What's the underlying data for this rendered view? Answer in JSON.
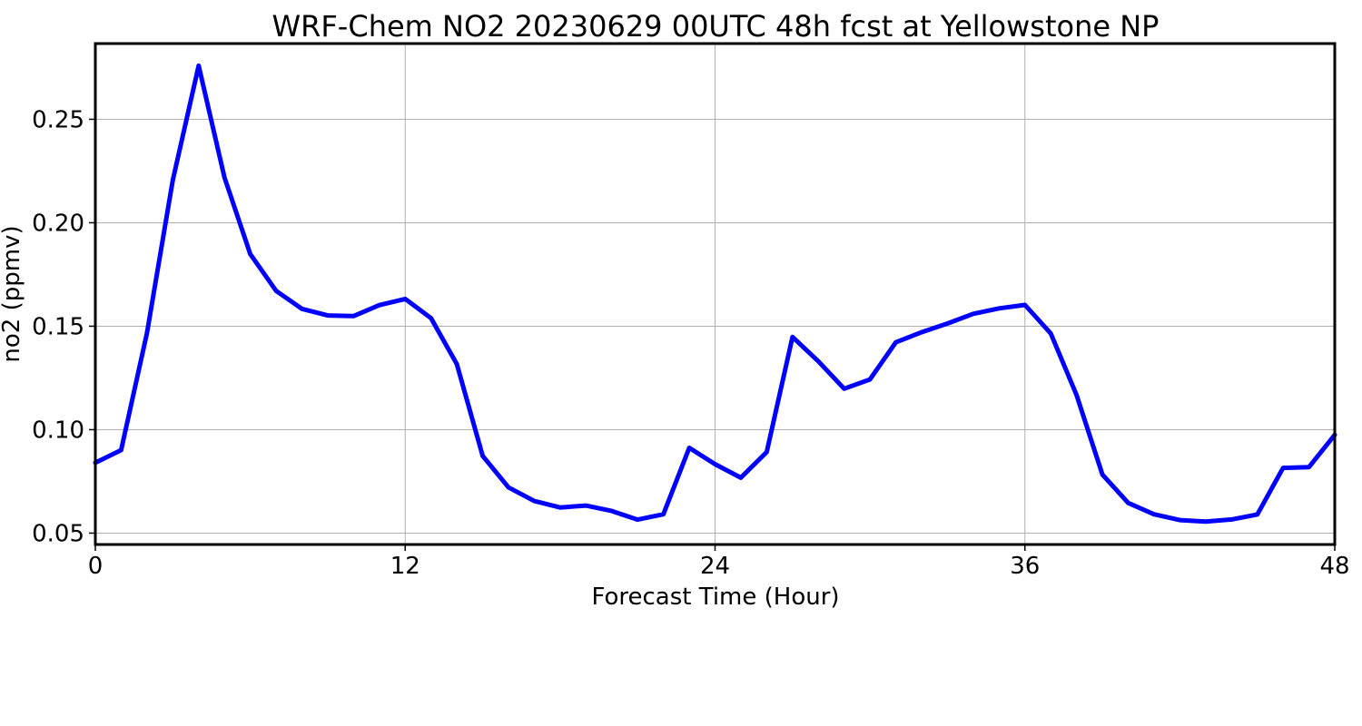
{
  "chart_data": {
    "type": "line",
    "title": "WRF-Chem NO2  20230629 00UTC 48h fcst at Yellowstone NP",
    "xlabel": "Forecast Time (Hour)",
    "ylabel": "no2  (ppmv)",
    "xlim": [
      0,
      48
    ],
    "ylim": [
      0.0445,
      0.2866
    ],
    "xticks": [
      0,
      12,
      24,
      36,
      48
    ],
    "xtick_labels": [
      "0",
      "12",
      "24",
      "36",
      "48"
    ],
    "yticks": [
      0.05,
      0.1,
      0.15,
      0.2,
      0.25
    ],
    "ytick_labels": [
      "0.05",
      "0.10",
      "0.15",
      "0.20",
      "0.25"
    ],
    "grid": true,
    "line_color": "#0000ff",
    "series": [
      {
        "x": [
          0,
          1,
          2,
          3,
          4,
          5,
          6,
          7,
          8,
          9,
          10,
          11,
          12,
          13,
          14,
          15,
          16,
          17,
          18,
          19,
          20,
          21,
          22,
          23,
          24,
          25,
          26,
          27,
          28,
          29,
          30,
          31,
          32,
          33,
          34,
          35,
          36,
          37,
          38,
          39,
          40,
          41,
          42,
          43,
          44,
          45,
          46,
          47,
          48
        ],
        "values": [
          0.084,
          0.0901,
          0.1468,
          0.2206,
          0.2759,
          0.2219,
          0.1849,
          0.1671,
          0.1584,
          0.1552,
          0.1549,
          0.1602,
          0.1632,
          0.1539,
          0.1317,
          0.0873,
          0.0721,
          0.0655,
          0.0624,
          0.0633,
          0.0607,
          0.0565,
          0.0591,
          0.0912,
          0.0833,
          0.0768,
          0.0892,
          0.1448,
          0.133,
          0.1198,
          0.1243,
          0.1422,
          0.1471,
          0.1513,
          0.156,
          0.1586,
          0.1603,
          0.1465,
          0.1168,
          0.0783,
          0.0646,
          0.0591,
          0.0563,
          0.0556,
          0.0566,
          0.059,
          0.0815,
          0.0819,
          0.0975
        ]
      }
    ]
  }
}
